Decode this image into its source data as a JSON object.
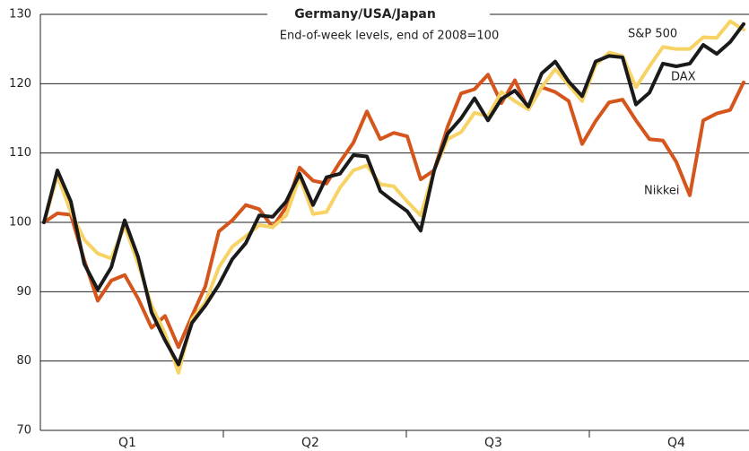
{
  "chart_data": {
    "type": "line",
    "title": "Germany/USA/Japan",
    "subtitle": "End-of-week levels, end of 2008=100",
    "quarters": [
      "Q1",
      "Q2",
      "Q3",
      "Q4"
    ],
    "ylim": [
      70,
      130
    ],
    "yticks": [
      70,
      80,
      90,
      100,
      110,
      120,
      130
    ],
    "grid": true,
    "series": [
      {
        "name": "Nikkei",
        "color": "#d4561c",
        "values": [
          100,
          101.3,
          101.1,
          94.5,
          88.7,
          91.6,
          92.4,
          89,
          84.8,
          86.5,
          82,
          86.5,
          90.8,
          98.7,
          100.3,
          102.5,
          101.9,
          99.3,
          102.2,
          107.9,
          106,
          105.6,
          108.7,
          111.5,
          116,
          112,
          112.9,
          112.4,
          106.2,
          107.5,
          113.8,
          118.6,
          119.2,
          121.3,
          117.2,
          120.5,
          116.3,
          119.5,
          118.8,
          117.5,
          111.3,
          114.6,
          117.3,
          117.7,
          114.7,
          112,
          111.8,
          108.7,
          103.9,
          114.7,
          115.7,
          116.2,
          120.2
        ]
      },
      {
        "name": "S&P 500",
        "color": "#f7d264",
        "values": [
          100,
          106.7,
          101.5,
          97.5,
          95.5,
          94.8,
          99.5,
          94,
          88,
          84,
          78.3,
          86,
          88.5,
          93.5,
          96.5,
          98,
          99.6,
          99.3,
          101,
          106.5,
          101.2,
          101.5,
          105,
          107.5,
          108.2,
          105.5,
          105.2,
          103,
          101,
          107.5,
          112,
          113,
          115.8,
          115.3,
          118.8,
          117.5,
          116.3,
          119.5,
          122.1,
          119.8,
          117.5,
          122.7,
          124.5,
          124,
          119.5,
          122.5,
          125.3,
          125,
          125,
          126.7,
          126.6,
          129,
          127.8
        ]
      },
      {
        "name": "DAX",
        "color": "#1a1a1a",
        "values": [
          100,
          107.5,
          103,
          94,
          90.3,
          93.5,
          100.3,
          95,
          87,
          83,
          79.5,
          85.5,
          88,
          91,
          94.7,
          97,
          101,
          100.8,
          103,
          107,
          102.5,
          106.5,
          107,
          109.7,
          109.5,
          104.5,
          103,
          101.6,
          98.8,
          107.5,
          112.8,
          115,
          117.9,
          114.7,
          117.8,
          119,
          116.7,
          121.5,
          123.2,
          120.3,
          118.2,
          123.2,
          124,
          123.8,
          117,
          118.7,
          122.9,
          122.5,
          122.9,
          125.6,
          124.3,
          126,
          128.6
        ]
      }
    ]
  }
}
